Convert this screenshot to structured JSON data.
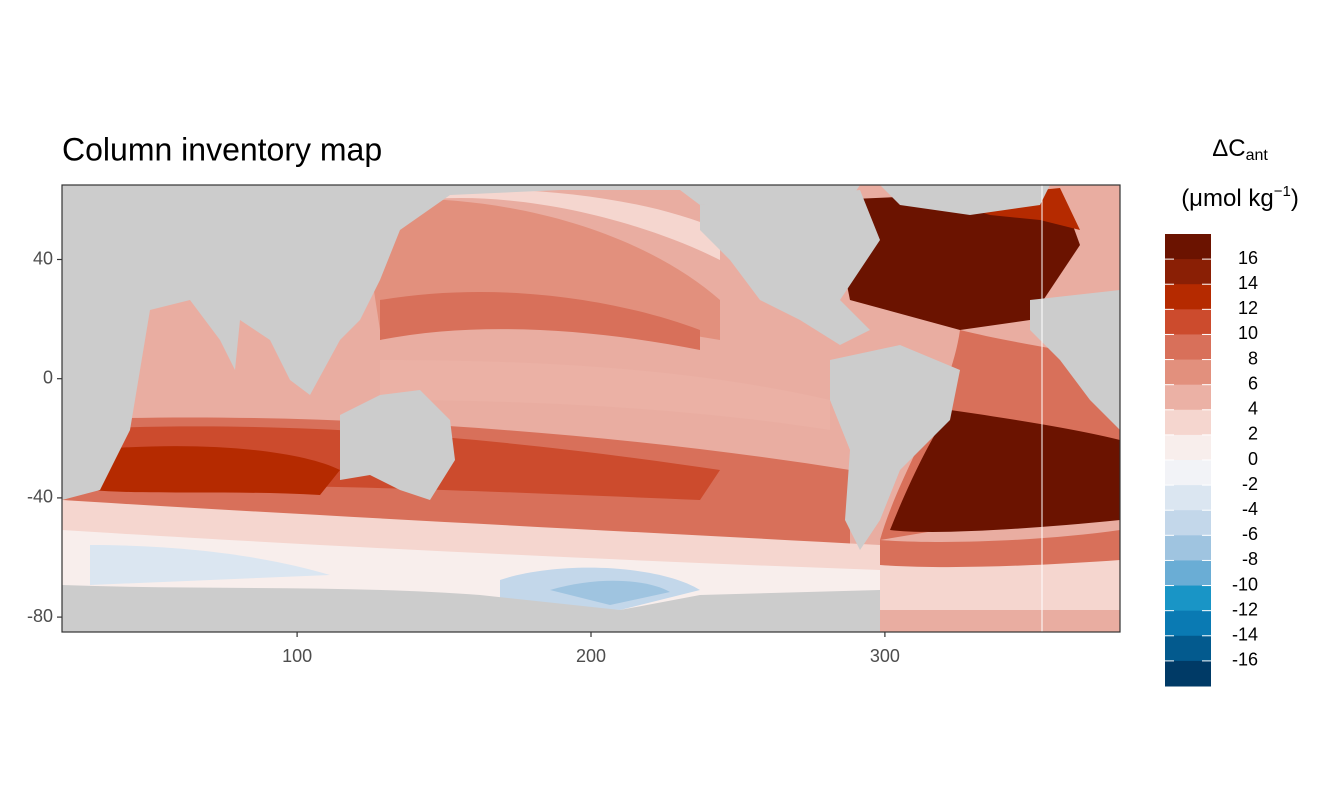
{
  "chart_data": {
    "type": "raster-map",
    "title": "Column inventory map",
    "xlim": [
      20,
      380
    ],
    "ylim": [
      -85,
      65
    ],
    "xticks": [
      100,
      200,
      300
    ],
    "yticks": [
      40,
      0,
      -40,
      -80
    ],
    "legend": {
      "title": "ΔC",
      "title_sub": "ant",
      "unit": "(μmol kg",
      "unit_sup": "−1",
      "unit_close": ")",
      "ticks": [
        16,
        14,
        12,
        10,
        8,
        6,
        4,
        2,
        0,
        -2,
        -4,
        -6,
        -8,
        -10,
        -12,
        -14,
        -16
      ],
      "colors": [
        "#6b1300",
        "#8a1f05",
        "#b52a00",
        "#cc4b2d",
        "#d8705a",
        "#e2907d",
        "#ebb1a5",
        "#f5d6cf",
        "#f8eeec",
        "#f2f3f7",
        "#dbe6f1",
        "#c3d7ea",
        "#9fc4e0",
        "#6aadd5",
        "#1995c6",
        "#0a7ab3",
        "#035a8e",
        "#003a66"
      ]
    }
  }
}
